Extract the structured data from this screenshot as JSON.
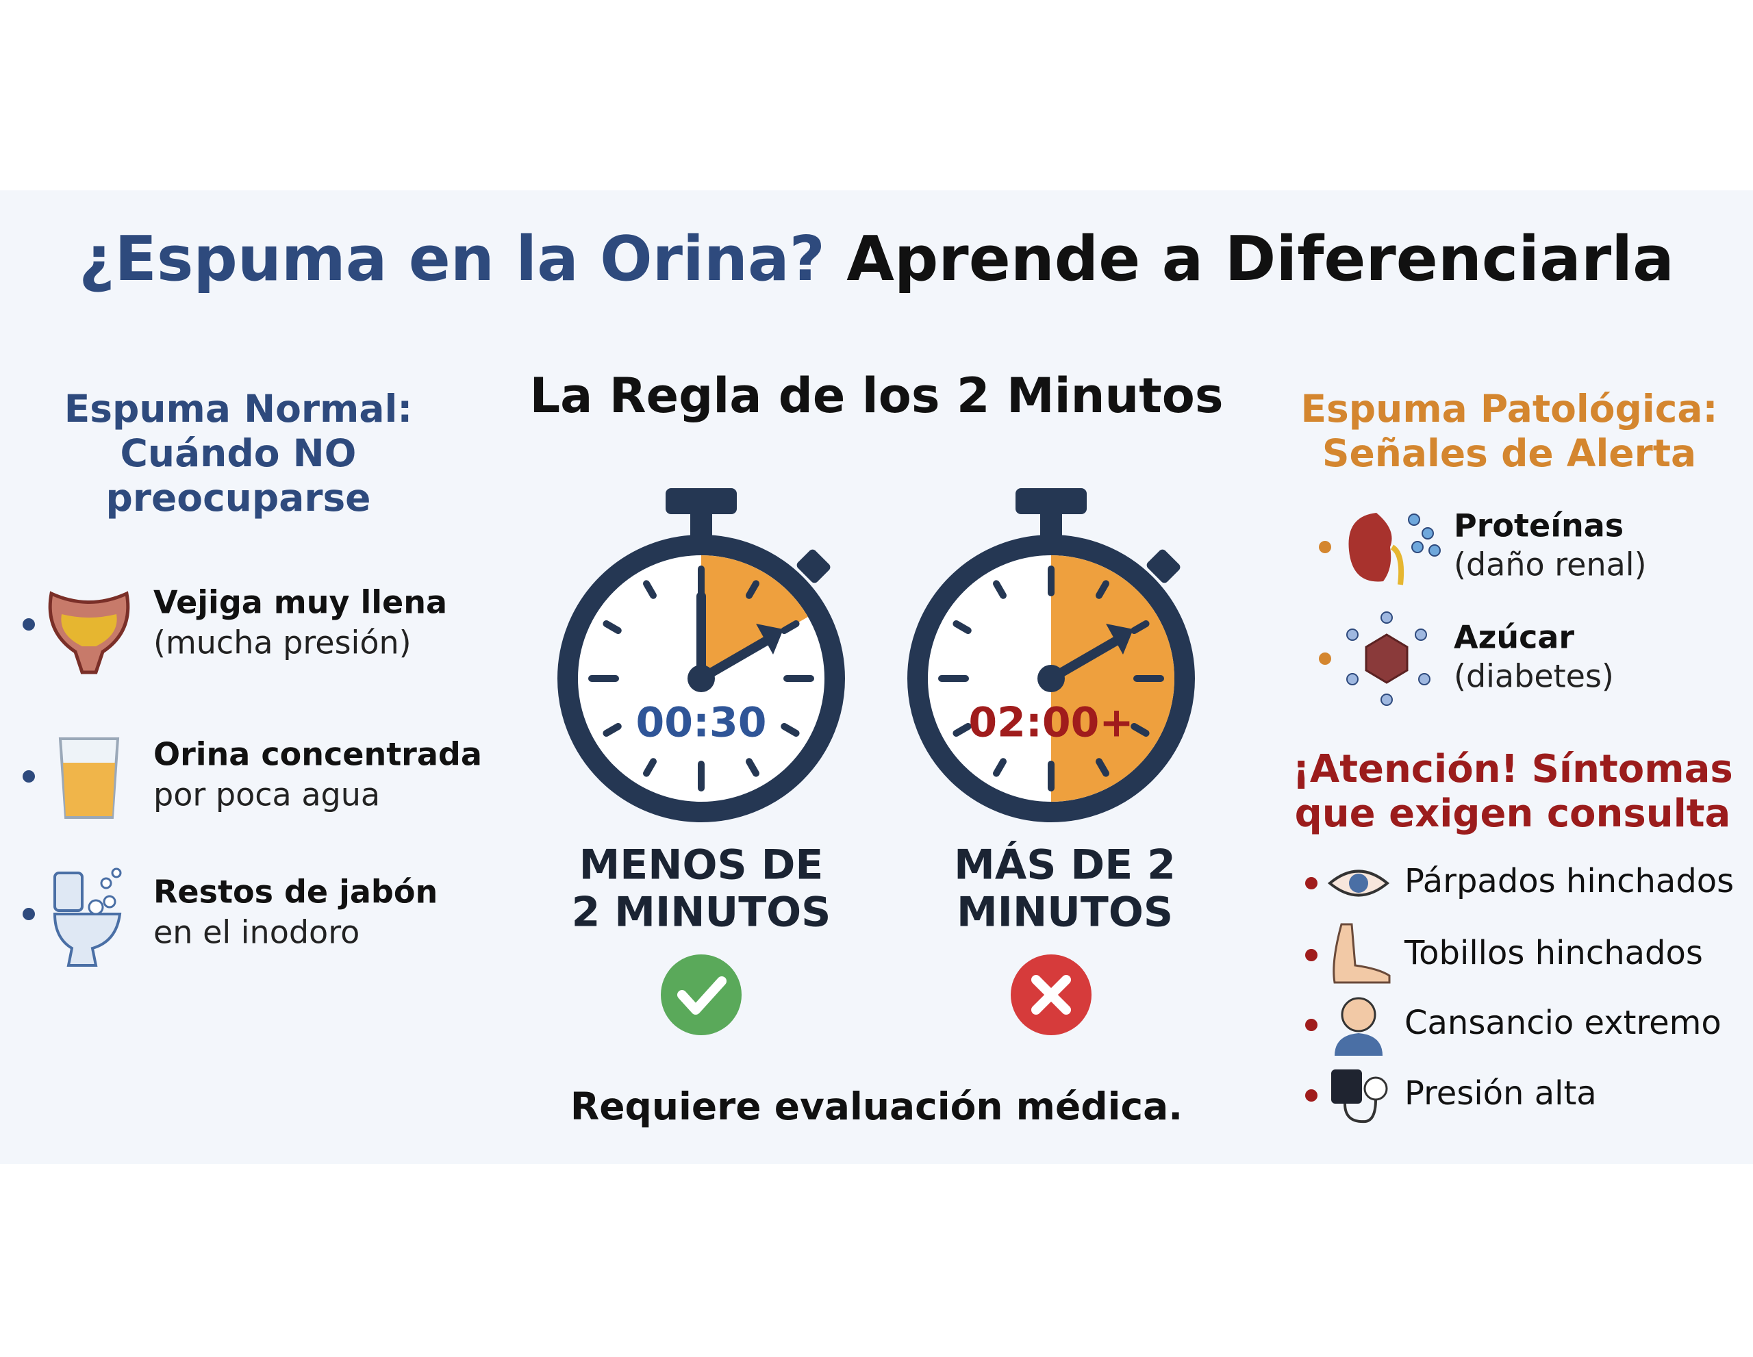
{
  "header": {
    "title_part1": "¿Espuma en la Orina?",
    "title_part2": "Aprende a Diferenciarla"
  },
  "left": {
    "heading": [
      "Espuma Normal:",
      "Cuándo NO",
      "preocuparse"
    ],
    "items": [
      {
        "bold": "Vejiga muy llena",
        "text": "(mucha presión)"
      },
      {
        "bold": "Orina concentrada",
        "text": "por poca agua"
      },
      {
        "bold": "Restos de jabón",
        "text": "en el inodoro"
      }
    ]
  },
  "center": {
    "heading": "La Regla de los 2 Minutos",
    "timers": [
      {
        "time": "00:30",
        "label": [
          "MENOS DE",
          "2 MINUTOS"
        ]
      },
      {
        "time": "02:00+",
        "label": [
          "MÁS DE 2",
          "MINUTOS"
        ]
      }
    ],
    "note": "Requiere evaluación médica."
  },
  "right": {
    "heading": [
      "Espuma Patológica:",
      "Señales de Alerta"
    ],
    "items": [
      {
        "bold": "Proteínas",
        "text": "(daño renal)"
      },
      {
        "bold": "Azúcar",
        "text": "(diabetes)"
      }
    ],
    "alert_heading": [
      "¡Atención! Síntomas",
      "que exigen consulta"
    ],
    "symptoms": [
      "Párpados hinchados",
      "Tobillos hinchados",
      "Cansancio extremo",
      "Presión alta"
    ]
  }
}
